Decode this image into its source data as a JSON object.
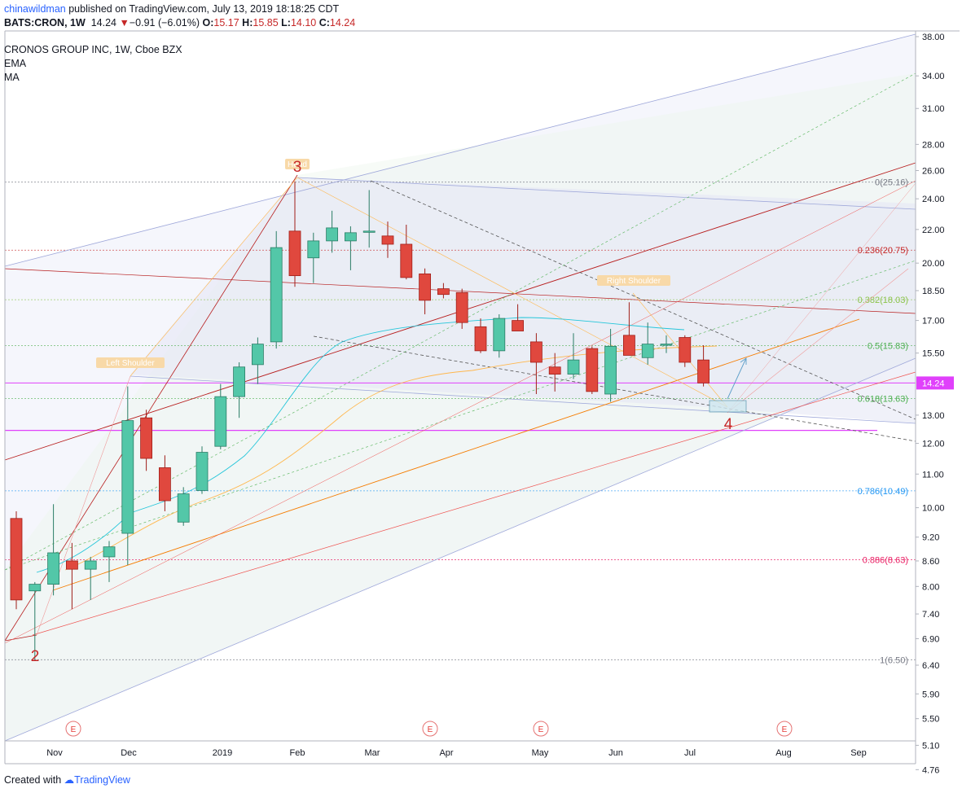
{
  "header": {
    "user": "chinawildman",
    "published": "published on TradingView.com, July 13, 2019 18:18:25 CDT",
    "ohlc_symbol": "BATS:CRON, 1W",
    "ohlc_last": "14.24",
    "ohlc_change": "−0.91 (−6.01%)",
    "o_label": "O:",
    "o_val": "15.17",
    "h_label": "H:",
    "h_val": "15.85",
    "l_label": "L:",
    "l_val": "14.10",
    "c_label": "C:",
    "c_val": "14.24"
  },
  "legend": {
    "title": "CRONOS GROUP INC, 1W, Cboe BZX",
    "ind1": "EMA",
    "ind2": "MA"
  },
  "footer": {
    "created": "Created with",
    "brand": "TradingView"
  },
  "colors": {
    "up": "#53c7a8",
    "down": "#e0483e",
    "fib_red": "#c2185b",
    "magenta": "#e040fb"
  },
  "chart_data": {
    "type": "candlestick",
    "title": "CRONOS GROUP INC, 1W, Cboe BZX",
    "y_scale": "log",
    "ylim": [
      4.76,
      38.0
    ],
    "y_ticks": [
      "38.00",
      "34.00",
      "31.00",
      "28.00",
      "26.00",
      "24.00",
      "22.00",
      "20.00",
      "18.50",
      "17.00",
      "15.50",
      "14.24",
      "13.00",
      "12.00",
      "11.00",
      "10.00",
      "9.20",
      "8.60",
      "8.00",
      "7.40",
      "6.90",
      "6.40",
      "5.90",
      "5.50",
      "5.10",
      "4.76"
    ],
    "x_ticks": [
      "Nov",
      "Dec",
      "2019",
      "Feb",
      "Mar",
      "Apr",
      "May",
      "Jun",
      "Jul",
      "Aug",
      "Sep"
    ],
    "last_price": "14.24",
    "candles": [
      {
        "o": 9.7,
        "h": 9.9,
        "l": 7.5,
        "c": 7.7
      },
      {
        "o": 7.9,
        "h": 8.1,
        "l": 6.5,
        "c": 8.05
      },
      {
        "o": 8.05,
        "h": 10.1,
        "l": 7.8,
        "c": 8.8
      },
      {
        "o": 8.6,
        "h": 9.05,
        "l": 7.5,
        "c": 8.4
      },
      {
        "o": 8.4,
        "h": 8.7,
        "l": 7.7,
        "c": 8.6
      },
      {
        "o": 8.7,
        "h": 9.1,
        "l": 8.1,
        "c": 8.95
      },
      {
        "o": 9.3,
        "h": 14.1,
        "l": 8.5,
        "c": 12.8
      },
      {
        "o": 12.9,
        "h": 13.2,
        "l": 11.1,
        "c": 11.5
      },
      {
        "o": 11.2,
        "h": 11.6,
        "l": 9.9,
        "c": 10.2
      },
      {
        "o": 9.6,
        "h": 10.6,
        "l": 9.5,
        "c": 10.4
      },
      {
        "o": 10.5,
        "h": 11.9,
        "l": 10.4,
        "c": 11.7
      },
      {
        "o": 11.9,
        "h": 14.2,
        "l": 11.8,
        "c": 13.7
      },
      {
        "o": 13.7,
        "h": 15.1,
        "l": 12.9,
        "c": 14.9
      },
      {
        "o": 15.0,
        "h": 16.2,
        "l": 14.2,
        "c": 15.9
      },
      {
        "o": 16.0,
        "h": 21.9,
        "l": 15.7,
        "c": 20.9
      },
      {
        "o": 21.9,
        "h": 25.2,
        "l": 18.7,
        "c": 19.3
      },
      {
        "o": 20.3,
        "h": 21.8,
        "l": 18.9,
        "c": 21.3
      },
      {
        "o": 21.3,
        "h": 23.2,
        "l": 20.6,
        "c": 22.1
      },
      {
        "o": 21.3,
        "h": 22.2,
        "l": 19.6,
        "c": 21.8
      },
      {
        "o": 21.9,
        "h": 24.6,
        "l": 20.9,
        "c": 21.9
      },
      {
        "o": 21.6,
        "h": 22.5,
        "l": 20.3,
        "c": 21.1
      },
      {
        "o": 21.1,
        "h": 22.3,
        "l": 19.1,
        "c": 19.2
      },
      {
        "o": 19.4,
        "h": 19.7,
        "l": 17.3,
        "c": 18.0
      },
      {
        "o": 18.6,
        "h": 18.9,
        "l": 18.1,
        "c": 18.3
      },
      {
        "o": 18.4,
        "h": 18.6,
        "l": 16.6,
        "c": 16.9
      },
      {
        "o": 16.7,
        "h": 17.1,
        "l": 15.5,
        "c": 15.6
      },
      {
        "o": 15.6,
        "h": 17.3,
        "l": 15.3,
        "c": 17.1
      },
      {
        "o": 17.0,
        "h": 17.8,
        "l": 16.5,
        "c": 16.5
      },
      {
        "o": 16.0,
        "h": 16.4,
        "l": 13.8,
        "c": 15.1
      },
      {
        "o": 14.9,
        "h": 15.5,
        "l": 13.9,
        "c": 14.6
      },
      {
        "o": 14.6,
        "h": 16.4,
        "l": 14.4,
        "c": 15.2
      },
      {
        "o": 15.7,
        "h": 15.8,
        "l": 13.8,
        "c": 13.9
      },
      {
        "o": 13.8,
        "h": 16.6,
        "l": 13.5,
        "c": 15.8
      },
      {
        "o": 16.3,
        "h": 17.9,
        "l": 15.4,
        "c": 15.4
      },
      {
        "o": 15.3,
        "h": 16.9,
        "l": 15.0,
        "c": 15.9
      },
      {
        "o": 15.9,
        "h": 16.3,
        "l": 15.5,
        "c": 15.9
      },
      {
        "o": 16.2,
        "h": 16.3,
        "l": 14.9,
        "c": 15.1
      },
      {
        "o": 15.2,
        "h": 15.85,
        "l": 14.1,
        "c": 14.24
      }
    ],
    "fib_levels": [
      {
        "label": "0(25.16)",
        "value": 25.16,
        "color": "#787b86"
      },
      {
        "label": "0.236(20.75)",
        "value": 20.75,
        "color": "#c62828"
      },
      {
        "label": "0.382(18.03)",
        "value": 18.03,
        "color": "#8bc34a"
      },
      {
        "label": "0.5(15.83)",
        "value": 15.83,
        "color": "#4caf50"
      },
      {
        "label": "0.618(13.63)",
        "value": 13.63,
        "color": "#4caf50"
      },
      {
        "label": "0.786(10.49)",
        "value": 10.49,
        "color": "#2196f3"
      },
      {
        "label": "0.886(8.63)",
        "value": 8.63,
        "color": "#e91e63"
      },
      {
        "label": "1(6.50)",
        "value": 6.5,
        "color": "#787b86"
      }
    ],
    "annotations": [
      {
        "text": "3",
        "color": "#c62828"
      },
      {
        "text": "2",
        "color": "#c62828"
      },
      {
        "text": "4",
        "color": "#c62828"
      },
      {
        "text": "Left Shoulder",
        "color": "#f5a623"
      },
      {
        "text": "Right Shoulder",
        "color": "#f5a623"
      },
      {
        "text": "Head",
        "color": "#f5a623"
      }
    ],
    "earnings_marker": "E",
    "magenta_level": 12.45
  }
}
